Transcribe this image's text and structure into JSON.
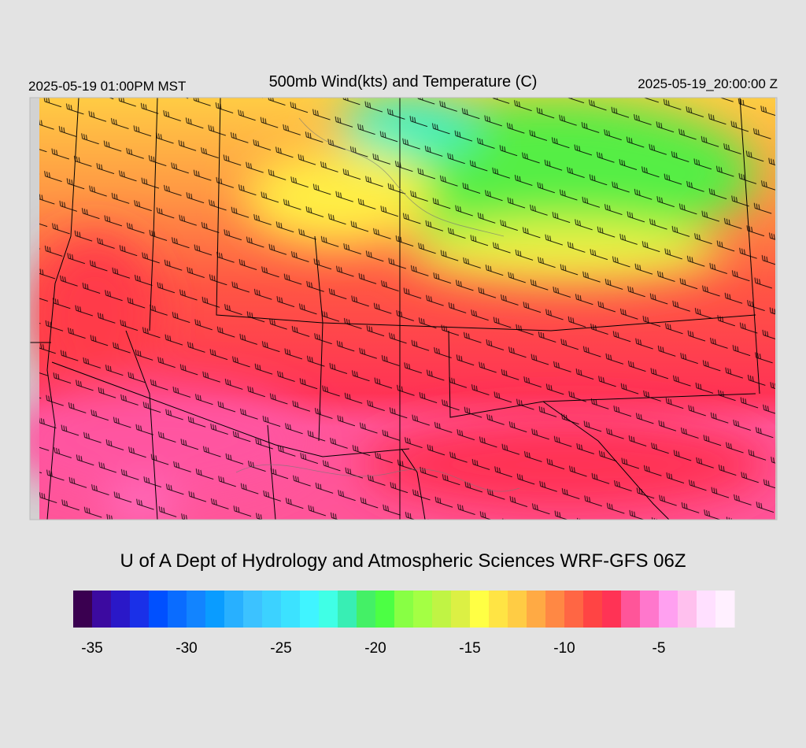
{
  "header": {
    "left": "2025-05-19 01:00PM MST",
    "title": "500mb Wind(kts) and Temperature (C)",
    "right": "2025-05-19_20:00:00 Z"
  },
  "footer": "U of A Dept of Hydrology and Atmospheric Sciences WRF-GFS 06Z",
  "colorbar": {
    "range": [
      -36,
      -1
    ],
    "colors": [
      "#3a0050",
      "#3c0aa0",
      "#2a18c8",
      "#1a30e8",
      "#0050ff",
      "#0a6cff",
      "#1284ff",
      "#0a9cff",
      "#28b0ff",
      "#3cc2ff",
      "#3cd2ff",
      "#3ce2ff",
      "#40f4ff",
      "#40ffe6",
      "#38eeb4",
      "#44f066",
      "#4cff44",
      "#88ff44",
      "#a4ff44",
      "#c0f444",
      "#dcf044",
      "#ffff44",
      "#ffe444",
      "#ffcc44",
      "#ffaa44",
      "#ff8844",
      "#ff6644",
      "#ff4444",
      "#ff3355",
      "#ff5599",
      "#ff77cc",
      "#ffa0f0",
      "#ffc0ee",
      "#ffe0ff",
      "#fff0ff"
    ],
    "ticks": [
      -35,
      -30,
      -25,
      -20,
      -15,
      -10,
      -5
    ]
  }
}
